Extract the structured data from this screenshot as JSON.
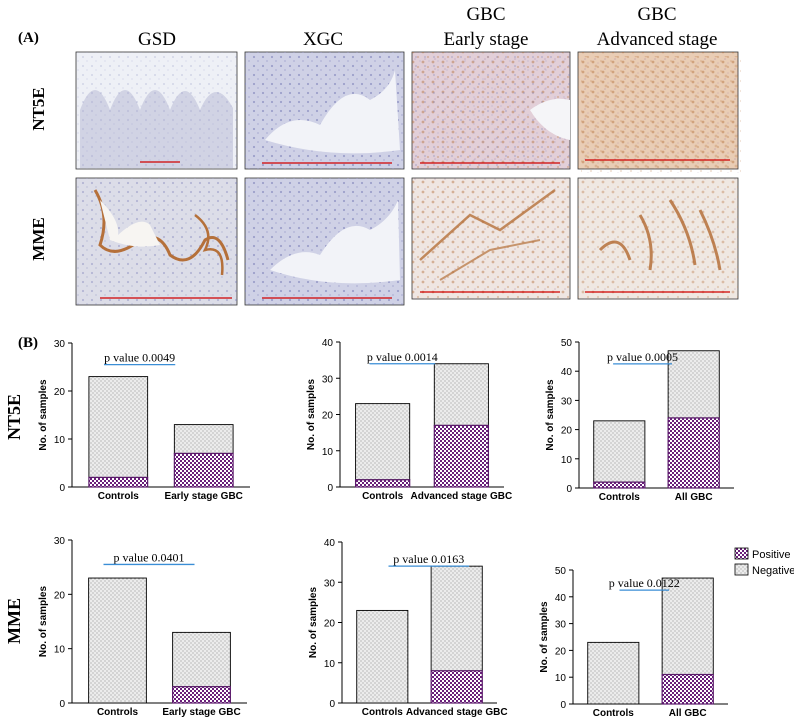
{
  "panel_a": {
    "label": "(A)",
    "columns": [
      {
        "line1": "GSD",
        "line2": ""
      },
      {
        "line1": "XGC",
        "line2": ""
      },
      {
        "line1": "GBC",
        "line2": "Early stage"
      },
      {
        "line1": "GBC",
        "line2": "Advanced stage"
      }
    ],
    "rows": [
      "NT5E",
      "MME"
    ],
    "colors": {
      "stain": "#b5703a",
      "hema": "#6b6fa8",
      "background": "#e8eaf2",
      "scalebar": "#d00000"
    }
  },
  "panel_b": {
    "label": "(B)",
    "row_labels": [
      "NT5E",
      "MME"
    ]
  },
  "colors": {
    "positive": "#6a1f7a",
    "negative": "#e6e6e6",
    "pline": "#3a8ed6",
    "axis": "#000000"
  },
  "legend": {
    "positive": "Positive",
    "negative": "Negative"
  },
  "chart_data": [
    {
      "type": "bar",
      "row": "NT5E",
      "categories": [
        "Controls",
        "Early stage GBC"
      ],
      "series": [
        {
          "name": "Positive",
          "values": [
            2,
            7
          ]
        },
        {
          "name": "Negative",
          "values": [
            21,
            6
          ]
        }
      ],
      "ylabel": "No. of samples",
      "xlabel": "",
      "ylim": [
        0,
        30
      ],
      "yticks": [
        0,
        10,
        20,
        30
      ],
      "annotation": "p value 0.0049"
    },
    {
      "type": "bar",
      "row": "NT5E",
      "categories": [
        "Controls",
        "Advanced stage GBC"
      ],
      "series": [
        {
          "name": "Positive",
          "values": [
            2,
            17
          ]
        },
        {
          "name": "Negative",
          "values": [
            21,
            17
          ]
        }
      ],
      "ylabel": "No. of samples",
      "xlabel": "",
      "ylim": [
        0,
        40
      ],
      "yticks": [
        0,
        10,
        20,
        30,
        40
      ],
      "annotation": "p value 0.0014"
    },
    {
      "type": "bar",
      "row": "NT5E",
      "categories": [
        "Controls",
        "All GBC"
      ],
      "series": [
        {
          "name": "Positive",
          "values": [
            2,
            24
          ]
        },
        {
          "name": "Negative",
          "values": [
            21,
            23
          ]
        }
      ],
      "ylabel": "No. of samples",
      "xlabel": "",
      "ylim": [
        0,
        50
      ],
      "yticks": [
        0,
        10,
        20,
        30,
        40,
        50
      ],
      "annotation": "p value 0.0005"
    },
    {
      "type": "bar",
      "row": "MME",
      "categories": [
        "Controls",
        "Early stage GBC"
      ],
      "series": [
        {
          "name": "Positive",
          "values": [
            0,
            3
          ]
        },
        {
          "name": "Negative",
          "values": [
            23,
            10
          ]
        }
      ],
      "ylabel": "No. of samples",
      "xlabel": "",
      "ylim": [
        0,
        30
      ],
      "yticks": [
        0,
        10,
        20,
        30
      ],
      "annotation": "p value 0.0401"
    },
    {
      "type": "bar",
      "row": "MME",
      "categories": [
        "Controls",
        "Advanced stage GBC"
      ],
      "series": [
        {
          "name": "Positive",
          "values": [
            0,
            8
          ]
        },
        {
          "name": "Negative",
          "values": [
            23,
            26
          ]
        }
      ],
      "ylabel": "No. of samples",
      "xlabel": "",
      "ylim": [
        0,
        40
      ],
      "yticks": [
        0,
        10,
        20,
        30,
        40
      ],
      "annotation": "p value 0.0163"
    },
    {
      "type": "bar",
      "row": "MME",
      "categories": [
        "Controls",
        "All GBC"
      ],
      "series": [
        {
          "name": "Positive",
          "values": [
            0,
            11
          ]
        },
        {
          "name": "Negative",
          "values": [
            23,
            36
          ]
        }
      ],
      "ylabel": "No. of samples",
      "xlabel": "",
      "ylim": [
        0,
        50
      ],
      "yticks": [
        0,
        10,
        20,
        30,
        40,
        50
      ],
      "annotation": "p value 0.0122"
    }
  ]
}
